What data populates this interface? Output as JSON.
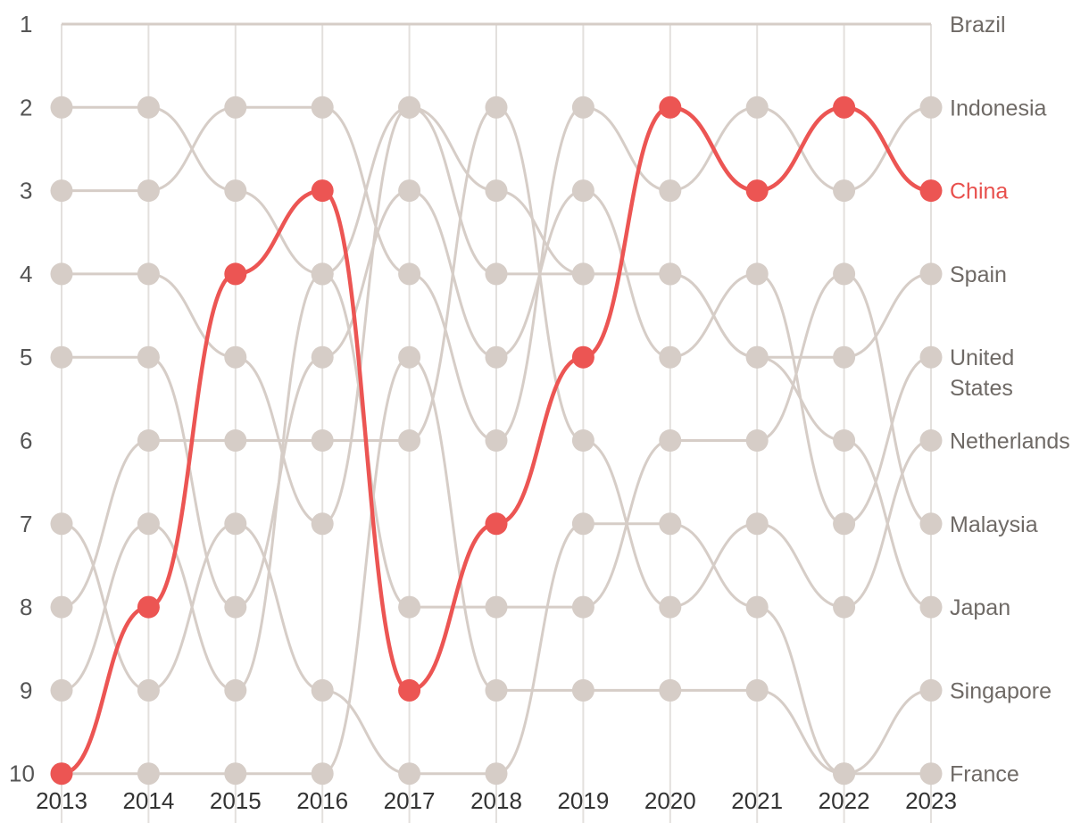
{
  "chart_data": {
    "type": "line",
    "subtype": "bump",
    "title": "",
    "xlabel": "",
    "ylabel": "",
    "x": [
      "2013",
      "2014",
      "2015",
      "2016",
      "2017",
      "2018",
      "2019",
      "2020",
      "2021",
      "2022",
      "2023"
    ],
    "y_ticks": [
      "1",
      "2",
      "3",
      "4",
      "5",
      "6",
      "7",
      "8",
      "9",
      "10"
    ],
    "y_reversed": true,
    "ylim": [
      1,
      10
    ],
    "grid": "vertical",
    "highlight_color": "#ec5553",
    "muted_color": "#d6cdc7",
    "series": [
      {
        "name": "China",
        "highlight": true,
        "values": [
          10,
          8,
          4,
          3,
          9,
          7,
          5,
          2,
          3,
          2,
          3
        ]
      },
      {
        "name": "Brazil",
        "values": [
          1,
          1,
          1,
          1,
          1,
          1,
          1,
          1,
          1,
          1,
          1
        ]
      },
      {
        "name": "Indonesia",
        "values": [
          3,
          3,
          2,
          2,
          4,
          6,
          2,
          3,
          2,
          3,
          2
        ]
      },
      {
        "name": "Spain",
        "values": [
          4,
          4,
          5,
          7,
          2,
          3,
          4,
          4,
          5,
          5,
          4
        ]
      },
      {
        "name": "United States",
        "values": [
          5,
          5,
          8,
          5,
          3,
          5,
          3,
          5,
          4,
          7,
          5
        ]
      },
      {
        "name": "Netherlands",
        "values": [
          8,
          6,
          6,
          6,
          6,
          2,
          6,
          8,
          7,
          8,
          6
        ]
      },
      {
        "name": "Malaysia",
        "values": [
          2,
          2,
          3,
          4,
          8,
          8,
          8,
          6,
          6,
          4,
          7
        ]
      },
      {
        "name": "Japan",
        "values": [
          9,
          7,
          9,
          4,
          2,
          4,
          4,
          4,
          5,
          6,
          8
        ]
      },
      {
        "name": "Singapore",
        "values": [
          7,
          9,
          7,
          9,
          10,
          10,
          7,
          7,
          8,
          10,
          9
        ]
      },
      {
        "name": "France",
        "values": [
          10,
          10,
          10,
          10,
          5,
          9,
          9,
          9,
          9,
          10,
          10
        ]
      }
    ]
  }
}
